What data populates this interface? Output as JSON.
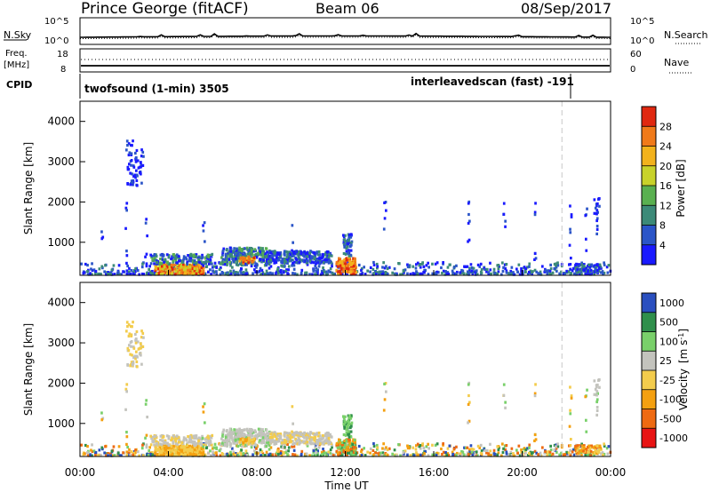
{
  "header": {
    "station": "Prince George (fitACF)",
    "beam": "Beam 06",
    "date": "08/Sep/2017"
  },
  "panels": {
    "noise": {
      "left_label": "N.Sky",
      "right_label": "N.Search",
      "left_ticks": [
        "10^5",
        "10^0"
      ],
      "right_ticks": [
        "10^5",
        "10^0"
      ]
    },
    "freq": {
      "left_label_1": "Freq.",
      "left_label_2": "[MHz]",
      "right_label": "Nave",
      "left_ticks": [
        "18",
        "8"
      ],
      "right_ticks": [
        "60",
        "0"
      ]
    },
    "cpid": {
      "label": "CPID",
      "segments": [
        {
          "text": "twofsound (1-min) 3505",
          "start_hour": 0.1
        },
        {
          "text": "interleavedscan (fast) -191",
          "start_hour": 21.8
        }
      ]
    }
  },
  "colors": {
    "power": [
      "#1a1aff",
      "#2b55c8",
      "#3c8a78",
      "#59b050",
      "#c8d22a",
      "#f2b21c",
      "#f07a1a",
      "#e02810"
    ],
    "velocity": [
      "#e81414",
      "#ee6a12",
      "#f4a010",
      "#f3cc4c",
      "#c3c3bd",
      "#79d06a",
      "#2f8f4b",
      "#2a4fbf"
    ],
    "ground_scatter": "#c3c3bd"
  },
  "chart_data": [
    {
      "type": "heatmap",
      "name": "power",
      "xlabel": "",
      "ylabel": "Slant Range [km]",
      "xlim": [
        0,
        24
      ],
      "ylim": [
        180,
        4500
      ],
      "y_ticks": [
        1000,
        2000,
        3000,
        4000
      ],
      "x_ticks": [
        0,
        4,
        8,
        12,
        16,
        20,
        24
      ],
      "colorbar": {
        "label": "Power [dB]",
        "min": 0,
        "max": 32,
        "tick_values": [
          4,
          8,
          12,
          16,
          20,
          24,
          28
        ],
        "tick_labels": [
          "4",
          "8",
          "12",
          "16",
          "20",
          "24",
          "28"
        ]
      },
      "end_marker_hour": 21.8
    },
    {
      "type": "heatmap",
      "name": "velocity",
      "xlabel": "Time UT",
      "ylabel": "Slant Range [km]",
      "xlim": [
        0,
        24
      ],
      "ylim": [
        180,
        4500
      ],
      "y_ticks": [
        1000,
        2000,
        3000,
        4000
      ],
      "x_ticks": [
        0,
        4,
        8,
        12,
        16,
        20,
        24
      ],
      "x_tick_labels": [
        "00:00",
        "04:00",
        "08:00",
        "12:00",
        "16:00",
        "20:00",
        "00:00"
      ],
      "colorbar": {
        "label_main": "Velocity",
        "label_unit": "[m s",
        "label_exp": "-1",
        "label_close": "]",
        "tick_labels": [
          "1000",
          "500",
          "100",
          "25",
          "-25",
          "-100",
          "-500",
          "-1000"
        ]
      },
      "end_marker_hour": 21.8
    }
  ]
}
